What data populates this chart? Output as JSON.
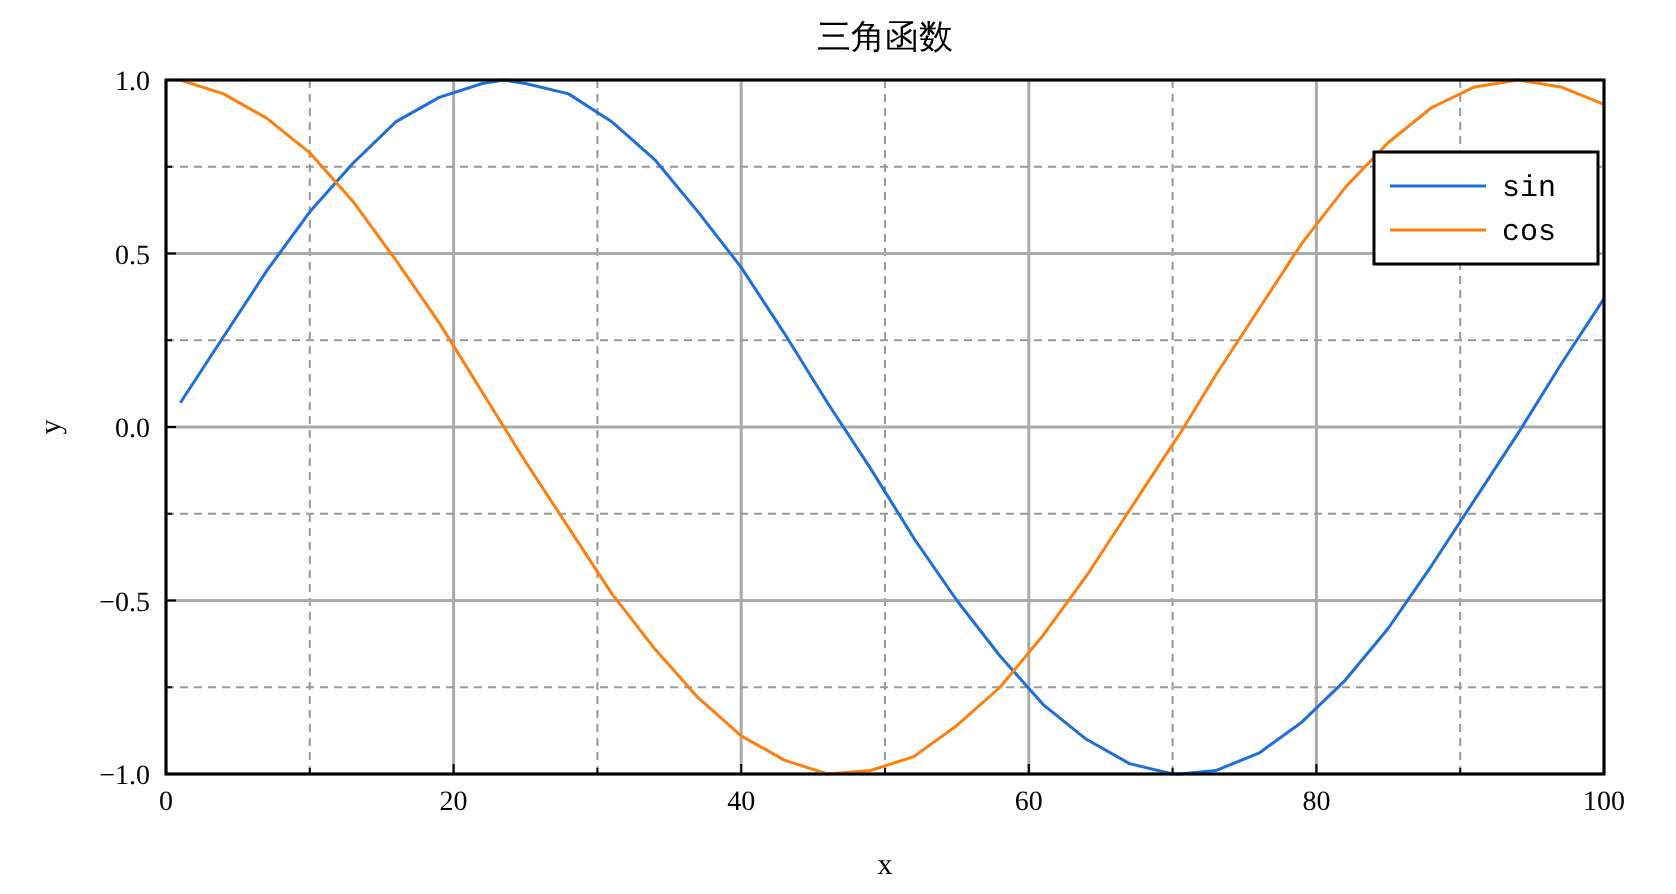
{
  "chart_data": {
    "type": "line",
    "title": "三角函数",
    "xlabel": "x",
    "ylabel": "y",
    "x": [
      1,
      4,
      7,
      10,
      13,
      16,
      19,
      22,
      23.5,
      25,
      28,
      31,
      34,
      37,
      40,
      43,
      46,
      49,
      52,
      55,
      58,
      61,
      64,
      67,
      70,
      70.5,
      73,
      76,
      79,
      82,
      85,
      88,
      91,
      94,
      97,
      100
    ],
    "series": [
      {
        "name": "sin",
        "color": "#1e6fd9",
        "values": [
          0.07,
          0.26,
          0.45,
          0.62,
          0.76,
          0.88,
          0.95,
          0.99,
          1.0,
          0.99,
          0.96,
          0.88,
          0.77,
          0.62,
          0.46,
          0.27,
          0.07,
          -0.12,
          -0.32,
          -0.5,
          -0.66,
          -0.8,
          -0.9,
          -0.97,
          -1.0,
          -1.0,
          -0.99,
          -0.94,
          -0.85,
          -0.73,
          -0.58,
          -0.4,
          -0.21,
          -0.02,
          0.18,
          0.37
        ]
      },
      {
        "name": "cos",
        "color": "#ff7f0e",
        "values": [
          1.0,
          0.96,
          0.89,
          0.79,
          0.65,
          0.48,
          0.3,
          0.1,
          0.0,
          -0.1,
          -0.29,
          -0.48,
          -0.64,
          -0.78,
          -0.89,
          -0.96,
          -1.0,
          -0.99,
          -0.95,
          -0.86,
          -0.75,
          -0.6,
          -0.43,
          -0.24,
          -0.05,
          -0.02,
          0.15,
          0.34,
          0.53,
          0.69,
          0.82,
          0.92,
          0.98,
          1.0,
          0.98,
          0.93
        ]
      }
    ],
    "xlim": [
      0,
      100
    ],
    "ylim": [
      -1.0,
      1.0
    ],
    "xticks": [
      {
        "value": 0,
        "label": "0"
      },
      {
        "value": 10,
        "label": null
      },
      {
        "value": 20,
        "label": "20"
      },
      {
        "value": 30,
        "label": null
      },
      {
        "value": 40,
        "label": "40"
      },
      {
        "value": 50,
        "label": null
      },
      {
        "value": 60,
        "label": "60"
      },
      {
        "value": 70,
        "label": null
      },
      {
        "value": 80,
        "label": "80"
      },
      {
        "value": 90,
        "label": null
      },
      {
        "value": 100,
        "label": "100"
      }
    ],
    "yticks": [
      {
        "value": -1,
        "label": "−1.0"
      },
      {
        "value": -0.75,
        "label": null
      },
      {
        "value": -0.5,
        "label": "−0.5"
      },
      {
        "value": -0.25,
        "label": null
      },
      {
        "value": 0,
        "label": "0.0"
      },
      {
        "value": 0.25,
        "label": null
      },
      {
        "value": 0.5,
        "label": "0.5"
      },
      {
        "value": 0.75,
        "label": null
      },
      {
        "value": 1,
        "label": "1.0"
      }
    ],
    "grid": true,
    "legend": "top right",
    "line_style": "solid"
  }
}
